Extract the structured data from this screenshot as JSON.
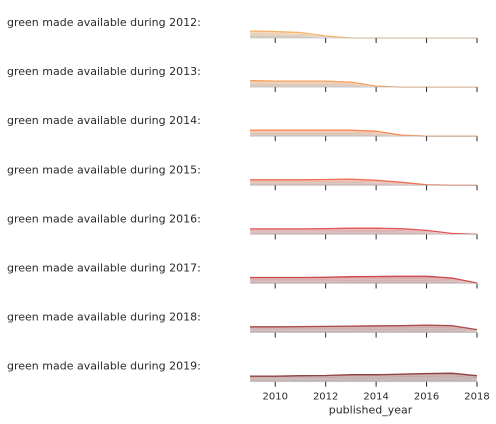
{
  "chart_data": {
    "type": "area",
    "xlabel": "published_year",
    "x_ticks": [
      2010,
      2012,
      2014,
      2016,
      2018
    ],
    "xlim": [
      2009,
      2018
    ],
    "ylim": [
      0,
      1
    ],
    "grid": false,
    "x": [
      2009,
      2010,
      2011,
      2012,
      2013,
      2014,
      2015,
      2016,
      2017,
      2018
    ],
    "rows": [
      {
        "label": "green made available during 2012:",
        "color": "#f5b26b",
        "values": [
          0.7,
          0.65,
          0.55,
          0.2,
          0.0,
          0.0,
          0.0,
          0.0,
          0.0,
          0.0
        ]
      },
      {
        "label": "green made available during 2013:",
        "color": "#f5a05e",
        "values": [
          0.65,
          0.6,
          0.6,
          0.6,
          0.5,
          0.1,
          0.0,
          0.0,
          0.0,
          0.0
        ]
      },
      {
        "label": "green made available during 2014:",
        "color": "#f58d57",
        "values": [
          0.6,
          0.6,
          0.6,
          0.6,
          0.6,
          0.5,
          0.1,
          0.0,
          0.0,
          0.0
        ]
      },
      {
        "label": "green made available during 2015:",
        "color": "#ef6f52",
        "values": [
          0.55,
          0.55,
          0.55,
          0.58,
          0.62,
          0.5,
          0.3,
          0.05,
          0.0,
          0.0
        ]
      },
      {
        "label": "green made available during 2016:",
        "color": "#e0585a",
        "values": [
          0.55,
          0.55,
          0.55,
          0.58,
          0.62,
          0.62,
          0.58,
          0.4,
          0.1,
          0.0
        ]
      },
      {
        "label": "green made available during 2017:",
        "color": "#c94a4d",
        "values": [
          0.6,
          0.6,
          0.6,
          0.62,
          0.68,
          0.7,
          0.72,
          0.72,
          0.55,
          0.05
        ]
      },
      {
        "label": "green made available during 2018:",
        "color": "#a84a4a",
        "values": [
          0.58,
          0.58,
          0.6,
          0.62,
          0.65,
          0.68,
          0.7,
          0.75,
          0.7,
          0.3
        ]
      },
      {
        "label": "green made available during 2019:",
        "color": "#8f4545",
        "values": [
          0.55,
          0.55,
          0.6,
          0.62,
          0.7,
          0.7,
          0.75,
          0.82,
          0.85,
          0.6
        ]
      }
    ]
  }
}
